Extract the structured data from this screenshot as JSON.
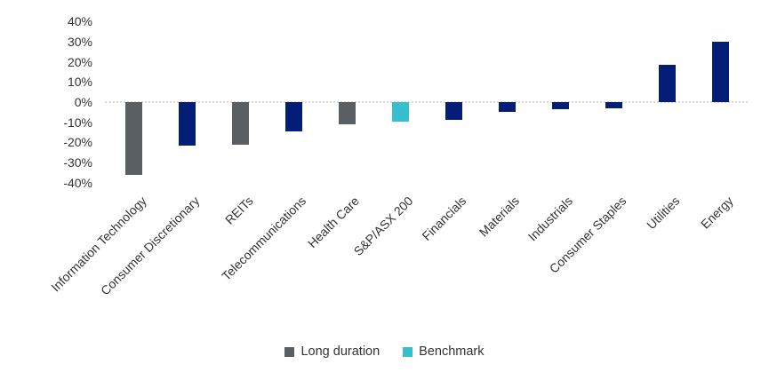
{
  "chart_data": {
    "type": "bar",
    "title": "",
    "categories": [
      "Information Technology",
      "Consumer Discretionary",
      "REITs",
      "Telecommunications",
      "Health Care",
      "S&P/ASX 200",
      "Financials",
      "Materials",
      "Industrials",
      "Consumer Staples",
      "Utilities",
      "Energy"
    ],
    "values": [
      -36,
      -21.5,
      -21,
      -14.5,
      -11,
      -9.5,
      -9,
      -5,
      -3.5,
      -3,
      18.5,
      30
    ],
    "unit": "%",
    "groups": [
      "long_duration",
      "other",
      "long_duration",
      "other",
      "long_duration",
      "benchmark",
      "other",
      "other",
      "other",
      "other",
      "other",
      "other"
    ],
    "group_colors": {
      "long_duration": "#595F63",
      "benchmark": "#36BFCE",
      "other": "#041E78"
    },
    "ylim": [
      -40,
      40
    ],
    "yticks": [
      "40%",
      "30%",
      "20%",
      "10%",
      "0%",
      "-10%",
      "-20%",
      "-30%",
      "-40%"
    ],
    "grid": "zero-line-only",
    "legend_position": "bottom",
    "legend": [
      {
        "label": "Long duration",
        "color_key": "long_duration"
      },
      {
        "label": "Benchmark",
        "color_key": "benchmark"
      }
    ]
  },
  "colors": {
    "background": "#FFFFFF",
    "axis_text": "#333333",
    "zero_line": "#D9D9D9"
  }
}
